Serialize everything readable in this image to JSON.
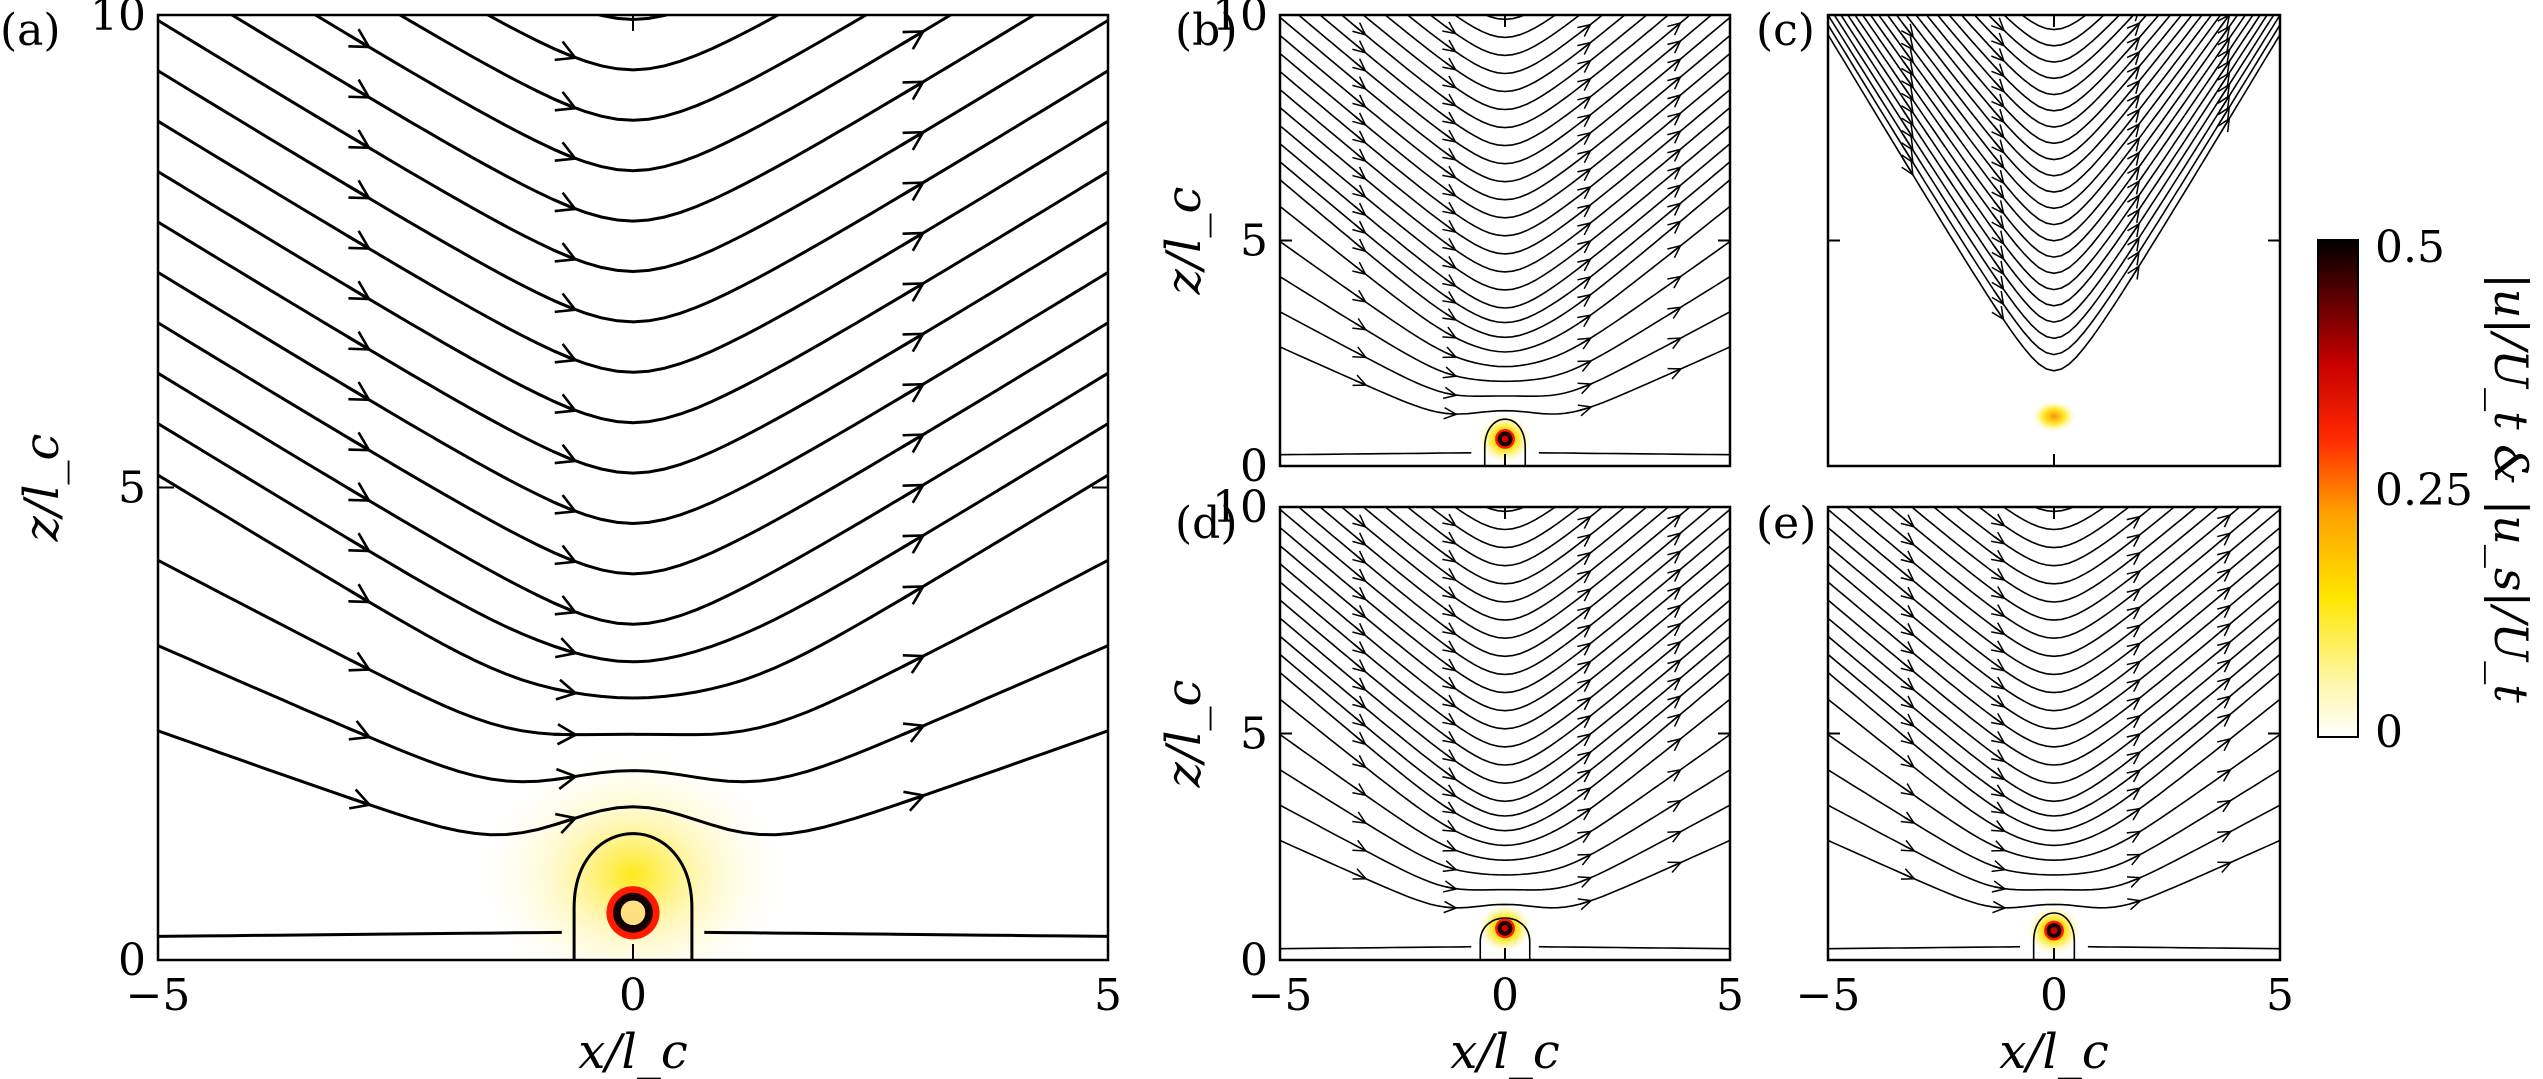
{
  "chart_data": {
    "type": "streamline",
    "panels": [
      {
        "id": "a",
        "label": "(a)",
        "xlabel": "x/l_c",
        "ylabel": "z/l_c",
        "xlim": [
          -5,
          5
        ],
        "ylim": [
          0,
          10
        ],
        "xticks": [
          "−5",
          "0",
          "5"
        ],
        "yticks": [
          "0",
          "5",
          "10"
        ],
        "sphere_center": [
          0,
          0.5
        ],
        "sphere_radius": 0.2,
        "mode": "a"
      },
      {
        "id": "b",
        "label": "(b)",
        "xlabel": "",
        "ylabel": "z/l_c",
        "xlim": [
          -5,
          5
        ],
        "ylim": [
          0,
          10
        ],
        "xticks": [],
        "yticks": [
          "0",
          "5",
          "10"
        ],
        "sphere_center": [
          0,
          0.6
        ],
        "sphere_radius": 0.2,
        "mode": "b"
      },
      {
        "id": "c",
        "label": "(c)",
        "xlabel": "",
        "ylabel": "",
        "xlim": [
          -5,
          5
        ],
        "ylim": [
          0,
          10
        ],
        "xticks": [],
        "yticks": [],
        "sphere_center": [
          0,
          1.1
        ],
        "sphere_radius": 0.0,
        "mode": "c"
      },
      {
        "id": "d",
        "label": "(d)",
        "xlabel": "x/l_c",
        "ylabel": "z/l_c",
        "xlim": [
          -5,
          5
        ],
        "ylim": [
          0,
          10
        ],
        "xticks": [
          "−5",
          "0",
          "5"
        ],
        "yticks": [
          "0",
          "5",
          "10"
        ],
        "sphere_center": [
          0,
          0.7
        ],
        "sphere_radius": 0.15,
        "mode": "d"
      },
      {
        "id": "e",
        "label": "(e)",
        "xlabel": "x/l_c",
        "ylabel": "",
        "xlim": [
          -5,
          5
        ],
        "ylim": [
          0,
          10
        ],
        "xticks": [
          "−5",
          "0",
          "5"
        ],
        "yticks": [],
        "sphere_center": [
          0,
          0.65
        ],
        "sphere_radius": 0.2,
        "mode": "e"
      }
    ],
    "colorbar": {
      "min": 0,
      "max": 0.5,
      "ticks": [
        "0",
        "0.25",
        "0.5"
      ],
      "label": "|u|/U_t  &  |u_s|/U_t",
      "colormap": [
        "#ffffff",
        "#fff6a0",
        "#ffe600",
        "#ffa000",
        "#ff2a00",
        "#c80000",
        "#500000",
        "#000000"
      ]
    }
  }
}
